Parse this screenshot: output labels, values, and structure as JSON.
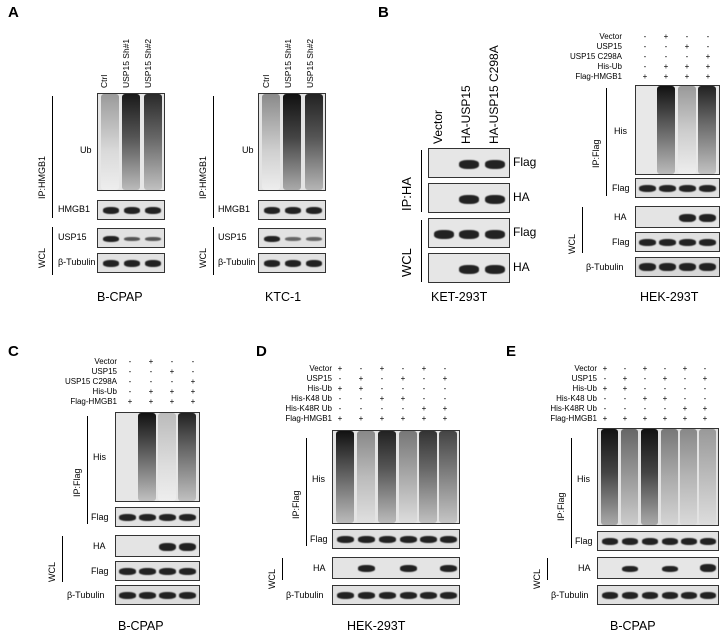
{
  "panels": {
    "A": {
      "letter": "A",
      "left": {
        "lanes": [
          "Ctrl",
          "USP15 Sh#1",
          "USP15 Sh#2"
        ],
        "ip_group": "IP:HMGB1",
        "wcl_group": "WCL",
        "rows": [
          "Ub",
          "HMGB1",
          "USP15",
          "β-Tubulin"
        ],
        "caption": "B-CPAP"
      },
      "right": {
        "lanes": [
          "Ctrl",
          "USP15 Sh#1",
          "USP15 Sh#2"
        ],
        "ip_group": "IP:HMGB1",
        "wcl_group": "WCL",
        "rows": [
          "Ub",
          "HMGB1",
          "USP15",
          "β-Tubulin"
        ],
        "caption": "KTC-1"
      }
    },
    "B": {
      "letter": "B",
      "left": {
        "lanes": [
          "Vector",
          "HA-USP15",
          "HA-USP15 C298A"
        ],
        "ip_group": "IP:HA",
        "wcl_group": "WCL",
        "rows": [
          "Flag",
          "HA",
          "Flag",
          "HA"
        ],
        "caption": "KET-293T"
      },
      "right": {
        "conditions": [
          {
            "name": "Vector",
            "syms": [
              "-",
              "+",
              "-",
              "-"
            ]
          },
          {
            "name": "USP15",
            "syms": [
              "-",
              "-",
              "+",
              "-"
            ]
          },
          {
            "name": "USP15 C298A",
            "syms": [
              "-",
              "-",
              "-",
              "+"
            ]
          },
          {
            "name": "His-Ub",
            "syms": [
              "-",
              "+",
              "+",
              "+"
            ]
          },
          {
            "name": "Flag-HMGB1",
            "syms": [
              "+",
              "+",
              "+",
              "+"
            ]
          }
        ],
        "ip_group": "IP:Flag",
        "wcl_group": "WCL",
        "rows": [
          "His",
          "Flag",
          "HA",
          "Flag",
          "β-Tubulin"
        ],
        "caption": "HEK-293T"
      }
    },
    "C": {
      "letter": "C",
      "conditions": [
        {
          "name": "Vector",
          "syms": [
            "-",
            "+",
            "-",
            "-"
          ]
        },
        {
          "name": "USP15",
          "syms": [
            "-",
            "-",
            "+",
            "-"
          ]
        },
        {
          "name": "USP15 C298A",
          "syms": [
            "-",
            "-",
            "-",
            "+"
          ]
        },
        {
          "name": "His-Ub",
          "syms": [
            "-",
            "+",
            "+",
            "+"
          ]
        },
        {
          "name": "Flag-HMGB1",
          "syms": [
            "+",
            "+",
            "+",
            "+"
          ]
        }
      ],
      "ip_group": "IP:Flag",
      "wcl_group": "WCL",
      "rows": [
        "His",
        "Flag",
        "HA",
        "Flag",
        "β-Tubulin"
      ],
      "caption": "B-CPAP"
    },
    "D": {
      "letter": "D",
      "conditions": [
        {
          "name": "Vector",
          "syms": [
            "+",
            "-",
            "+",
            "-",
            "+",
            "-"
          ]
        },
        {
          "name": "USP15",
          "syms": [
            "-",
            "+",
            "-",
            "+",
            "-",
            "+"
          ]
        },
        {
          "name": "His-Ub",
          "syms": [
            "+",
            "+",
            "-",
            "-",
            "-",
            "-"
          ]
        },
        {
          "name": "His-K48 Ub",
          "syms": [
            "-",
            "-",
            "+",
            "+",
            "-",
            "-"
          ]
        },
        {
          "name": "His-K48R Ub",
          "syms": [
            "-",
            "-",
            "-",
            "-",
            "+",
            "+"
          ]
        },
        {
          "name": "Flag-HMGB1",
          "syms": [
            "+",
            "+",
            "+",
            "+",
            "+",
            "+"
          ]
        }
      ],
      "ip_group": "IP:Flag",
      "wcl_group": "WCL",
      "rows": [
        "His",
        "Flag",
        "HA",
        "β-Tubulin"
      ],
      "caption": "HEK-293T"
    },
    "E": {
      "letter": "E",
      "conditions": [
        {
          "name": "Vector",
          "syms": [
            "+",
            "-",
            "+",
            "-",
            "+",
            "-"
          ]
        },
        {
          "name": "USP15",
          "syms": [
            "-",
            "+",
            "-",
            "+",
            "-",
            "+"
          ]
        },
        {
          "name": "His-Ub",
          "syms": [
            "+",
            "+",
            "-",
            "-",
            "-",
            "-"
          ]
        },
        {
          "name": "His-K48 Ub",
          "syms": [
            "-",
            "-",
            "+",
            "+",
            "-",
            "-"
          ]
        },
        {
          "name": "His-K48R Ub",
          "syms": [
            "-",
            "-",
            "-",
            "-",
            "+",
            "+"
          ]
        },
        {
          "name": "Flag-HMGB1",
          "syms": [
            "+",
            "+",
            "+",
            "+",
            "+",
            "+"
          ]
        }
      ],
      "ip_group": "IP:Flag",
      "wcl_group": "WCL",
      "rows": [
        "His",
        "Flag",
        "HA",
        "β-Tubulin"
      ],
      "caption": "B-CPAP"
    }
  }
}
